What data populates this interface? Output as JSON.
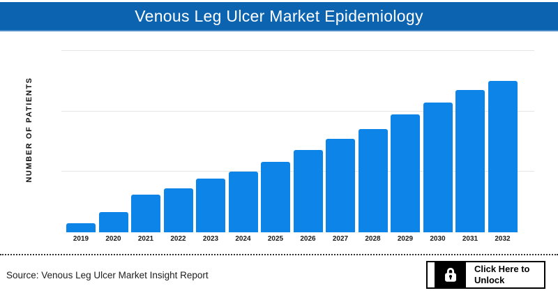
{
  "header": {
    "title": "Venous Leg Ulcer Market Epidemiology"
  },
  "chart_data": {
    "type": "bar",
    "title": "Venous Leg Ulcer Market Epidemiology",
    "xlabel": "",
    "ylabel": "NUMBER OF PATIENTS",
    "categories": [
      "2019",
      "2020",
      "2021",
      "2022",
      "2023",
      "2024",
      "2025",
      "2026",
      "2027",
      "2028",
      "2029",
      "2030",
      "2031",
      "2032"
    ],
    "values": [
      0.15,
      0.34,
      0.62,
      0.73,
      0.89,
      1.0,
      1.17,
      1.36,
      1.55,
      1.71,
      1.95,
      2.15,
      2.35,
      2.5
    ],
    "value_units": "relative (no y-axis tick labels shown; one gridline interval = 1 unit)",
    "ylim": [
      0,
      3
    ],
    "gridlines_at": [
      1,
      2,
      3
    ],
    "grid": "horizontal",
    "legend": "none",
    "bar_color": "#0d84e8"
  },
  "footer": {
    "source": "Source: Venous Leg Ulcer Market Insight Report",
    "unlock_button": {
      "label": "Click Here to Unlock",
      "icon": "lock-icon"
    }
  },
  "colors": {
    "header_background": "#0c64b0",
    "header_border": "#4d8dc9",
    "bar": "#0d84e8",
    "gridline": "#e4e4e4",
    "text": "#1a1a1a"
  }
}
